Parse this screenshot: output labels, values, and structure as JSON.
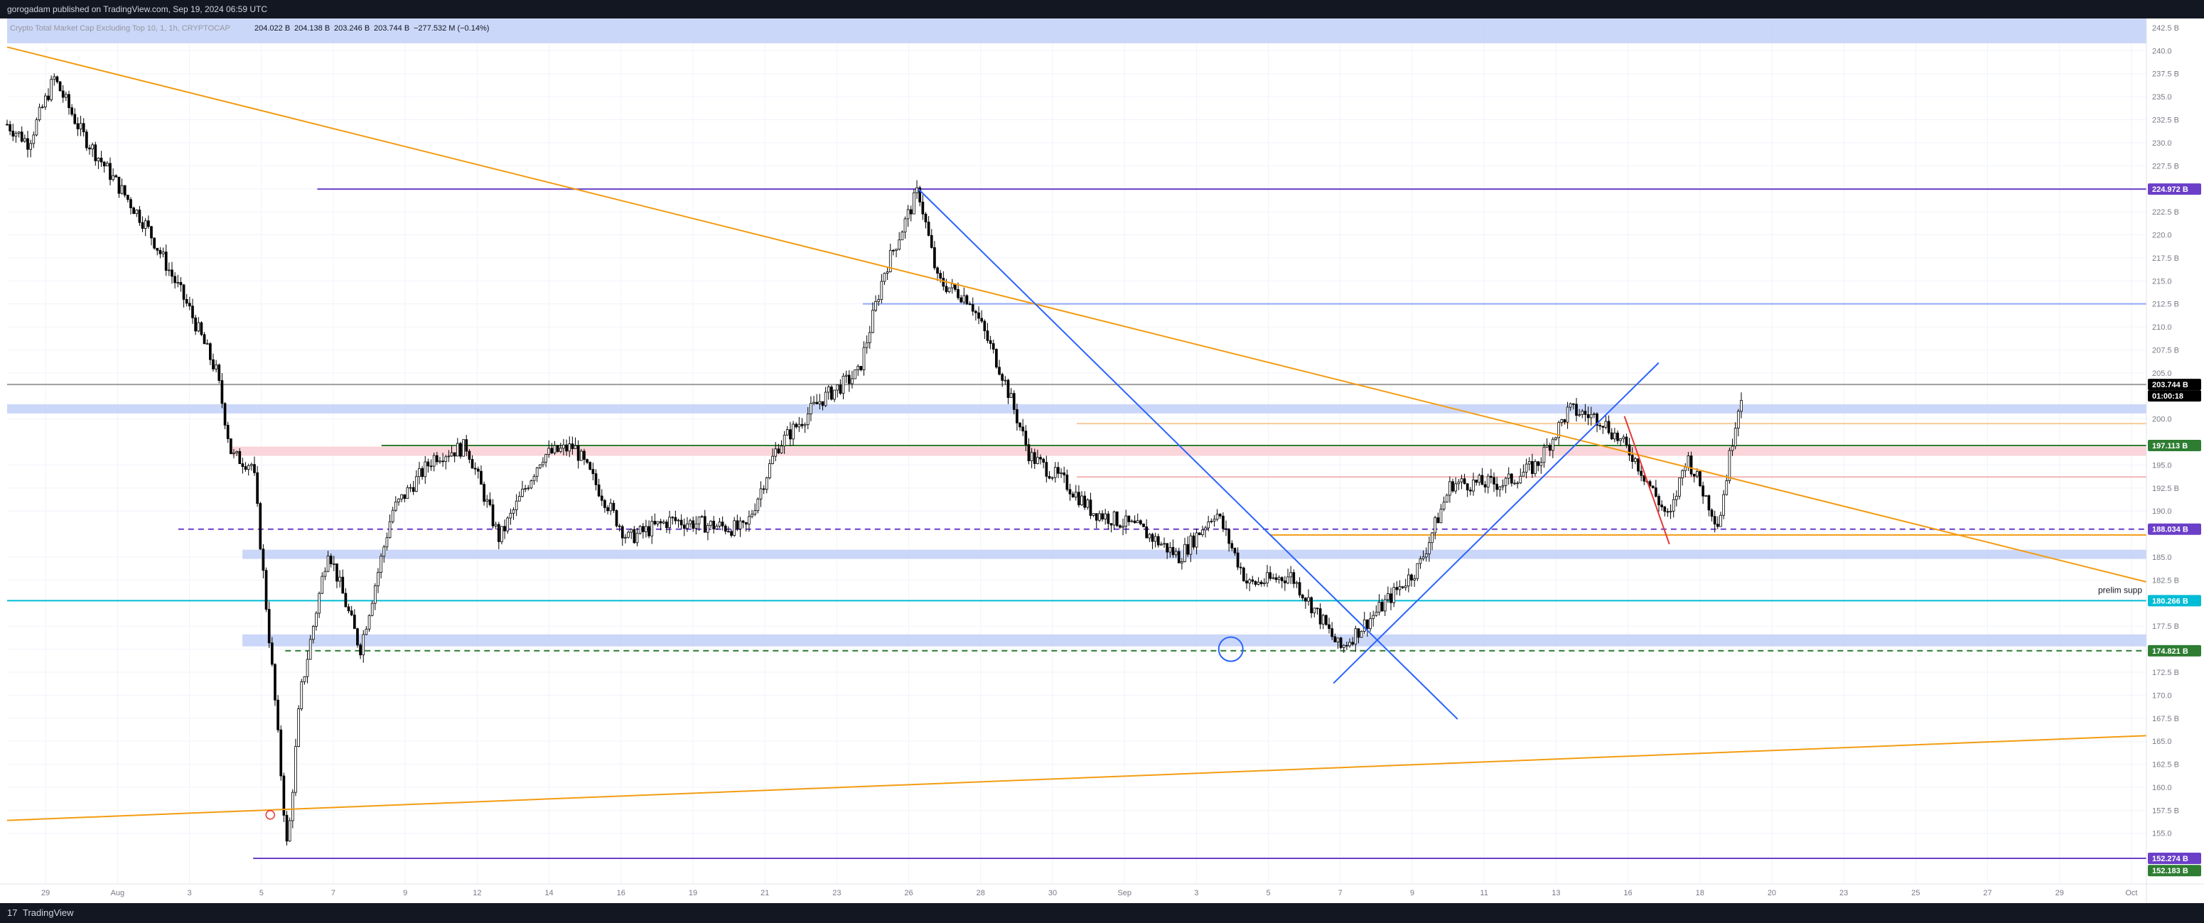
{
  "header": {
    "publisher": "gorogadam published on TradingView.com, Sep 19, 2024 06:59 UTC"
  },
  "legend": {
    "symbol": "Crypto Total Market Cap Excluding Top 10, 1, 1h, CRYPTOCAP",
    "ohlc": [
      "204.022 B",
      "204.138 B",
      "203.246 B",
      "203.744 B"
    ],
    "change": "−277.532 M (−0.14%)"
  },
  "footer": {
    "brand": "TradingView",
    "logo": "17"
  },
  "colors": {
    "up": "#ffffff",
    "down": "#000000",
    "grid": "#f0f3fa",
    "zone": "#c5d3f7",
    "redzone": "#f9d0d5",
    "orange": "#f39c12",
    "blue": "#2962ff",
    "purple": "#6b3fc8",
    "teal": "#00bcd4",
    "green": "#2e7d32",
    "red": "#e53935"
  },
  "chart_data": {
    "type": "candlestick",
    "xlabel": "",
    "ylabel": "",
    "ylim": [
      149.5,
      243.5
    ],
    "y_ticks": [
      "242.5 B",
      "240.0",
      "237.5 B",
      "235.0",
      "232.5 B",
      "230.0",
      "227.5 B",
      "225.0",
      "222.5 B",
      "220.0",
      "217.5 B",
      "215.0",
      "212.5 B",
      "210.0",
      "207.5 B",
      "205.0",
      "200.0",
      "195.0",
      "192.5 B",
      "190.0",
      "185.0",
      "182.5 B",
      "177.5 B",
      "175.0",
      "172.5 B",
      "170.0",
      "167.5 B",
      "165.0",
      "162.5 B",
      "160.0",
      "157.5 B",
      "155.0"
    ],
    "x_ticks": [
      "29",
      "Aug",
      "3",
      "5",
      "7",
      "9",
      "12",
      "14",
      "16",
      "19",
      "21",
      "23",
      "26",
      "28",
      "30",
      "Sep",
      "3",
      "5",
      "7",
      "9",
      "11",
      "13",
      "16",
      "18",
      "20",
      "23",
      "25",
      "27",
      "29",
      "Oct"
    ],
    "price_labels": [
      {
        "text": "224.972 B",
        "value": 224.972,
        "color": "#6b3fc8"
      },
      {
        "text": "203.744 B",
        "value": 203.744,
        "color": "#000000"
      },
      {
        "text": "01:00:18",
        "value": 203.744,
        "color": "#000000"
      },
      {
        "text": "197.113 B",
        "value": 197.113,
        "color": "#2e7d32"
      },
      {
        "text": "188.034 B",
        "value": 188.034,
        "color": "#6b3fc8"
      },
      {
        "text": "180.266 B",
        "value": 180.266,
        "color": "#00bcd4"
      },
      {
        "text": "174.821 B",
        "value": 174.821,
        "color": "#2e7d32"
      },
      {
        "text": "152.274 B",
        "value": 152.274,
        "color": "#6b3fc8"
      },
      {
        "text": "152.183 B",
        "value": 152.183,
        "color": "#2e7d32"
      }
    ],
    "annotations": [
      {
        "text": "prelim supp",
        "value": 181.4
      }
    ],
    "hlines": [
      {
        "value": 224.972,
        "x_from": 0.145,
        "color": "#6b3fc8",
        "style": "solid"
      },
      {
        "value": 212.5,
        "x_from": 0.4,
        "color": "#90a8f5",
        "style": "solid"
      },
      {
        "value": 203.744,
        "x_from": 0.0,
        "color": "#9e9e9e",
        "style": "solid"
      },
      {
        "value": 199.5,
        "x_from": 0.5,
        "color": "#f5cb9b",
        "style": "solid"
      },
      {
        "value": 197.113,
        "x_from": 0.175,
        "color": "#2e7d32",
        "style": "solid"
      },
      {
        "value": 193.7,
        "x_from": 0.5,
        "color": "#f4b4b4",
        "style": "solid"
      },
      {
        "value": 188.034,
        "x_from": 0.08,
        "color": "#6b3fc8",
        "style": "dashed"
      },
      {
        "value": 187.4,
        "x_from": 0.59,
        "color": "#f39c12",
        "style": "solid"
      },
      {
        "value": 180.266,
        "x_from": 0.0,
        "color": "#00bcd4",
        "style": "solid"
      },
      {
        "value": 174.821,
        "x_from": 0.13,
        "color": "#2e7d32",
        "style": "dashed"
      },
      {
        "value": 152.274,
        "x_from": 0.115,
        "color": "#6b3fc8",
        "style": "solid"
      }
    ],
    "zones": [
      {
        "y1": 243.5,
        "y2": 240.8,
        "x_from": 0.0,
        "color": "#c5d3f7"
      },
      {
        "y1": 201.6,
        "y2": 200.6,
        "x_from": 0.0,
        "color": "#c5d3f7"
      },
      {
        "y1": 197.0,
        "y2": 196.0,
        "x_from": 0.105,
        "color": "#f9d0d5"
      },
      {
        "y1": 185.8,
        "y2": 184.8,
        "x_from": 0.11,
        "color": "#c5d3f7"
      },
      {
        "y1": 176.6,
        "y2": 175.3,
        "x_from": 0.11,
        "color": "#c5d3f7"
      }
    ],
    "trendlines": [
      {
        "x1": 0.0,
        "y1": 240.4,
        "x2": 1.0,
        "y2": 182.3,
        "color": "#f39c12"
      },
      {
        "x1": 0.0,
        "y1": 156.4,
        "x2": 1.0,
        "y2": 165.6,
        "color": "#f39c12"
      },
      {
        "x1": 0.426,
        "y1": 224.97,
        "x2": 0.678,
        "y2": 167.4,
        "color": "#2962ff"
      },
      {
        "x1": 0.62,
        "y1": 171.3,
        "x2": 0.772,
        "y2": 206.1,
        "color": "#2962ff"
      },
      {
        "x1": 0.756,
        "y1": 200.3,
        "x2": 0.777,
        "y2": 186.4,
        "color": "#e53935"
      }
    ],
    "circle": {
      "x": 0.572,
      "y": 175.0
    },
    "alert_marker": {
      "x": 0.123,
      "y": 157.0
    },
    "candles": {
      "start_close": 232.0,
      "volatility": 0.8,
      "keypoints": [
        [
          0.0,
          232.0
        ],
        [
          0.01,
          230.0
        ],
        [
          0.022,
          237.0
        ],
        [
          0.035,
          231.0
        ],
        [
          0.05,
          226.0
        ],
        [
          0.065,
          221.0
        ],
        [
          0.085,
          212.0
        ],
        [
          0.098,
          205.0
        ],
        [
          0.105,
          196.0
        ],
        [
          0.115,
          195.0
        ],
        [
          0.125,
          170.0
        ],
        [
          0.131,
          153.0
        ],
        [
          0.137,
          170.0
        ],
        [
          0.15,
          186.0
        ],
        [
          0.165,
          175.0
        ],
        [
          0.18,
          190.0
        ],
        [
          0.2,
          196.0
        ],
        [
          0.215,
          197.0
        ],
        [
          0.23,
          187.0
        ],
        [
          0.25,
          196.0
        ],
        [
          0.265,
          197.0
        ],
        [
          0.29,
          187.0
        ],
        [
          0.31,
          189.0
        ],
        [
          0.345,
          188.0
        ],
        [
          0.36,
          197.0
        ],
        [
          0.38,
          202.0
        ],
        [
          0.398,
          205.0
        ],
        [
          0.41,
          216.0
        ],
        [
          0.426,
          224.9
        ],
        [
          0.435,
          215.0
        ],
        [
          0.45,
          213.0
        ],
        [
          0.465,
          205.0
        ],
        [
          0.478,
          196.0
        ],
        [
          0.495,
          193.0
        ],
        [
          0.507,
          190.0
        ],
        [
          0.53,
          188.0
        ],
        [
          0.548,
          185.0
        ],
        [
          0.565,
          190.0
        ],
        [
          0.58,
          182.0
        ],
        [
          0.6,
          183.0
        ],
        [
          0.615,
          178.0
        ],
        [
          0.623,
          175.0
        ],
        [
          0.64,
          179.0
        ],
        [
          0.66,
          184.0
        ],
        [
          0.675,
          193.0
        ],
        [
          0.7,
          193.0
        ],
        [
          0.715,
          195.0
        ],
        [
          0.73,
          201.0
        ],
        [
          0.745,
          200.0
        ],
        [
          0.76,
          196.0
        ],
        [
          0.777,
          189.0
        ],
        [
          0.785,
          196.0
        ],
        [
          0.8,
          188.5
        ],
        [
          0.808,
          200.0
        ],
        [
          0.812,
          204.0
        ]
      ],
      "last_index": 0.812
    }
  }
}
